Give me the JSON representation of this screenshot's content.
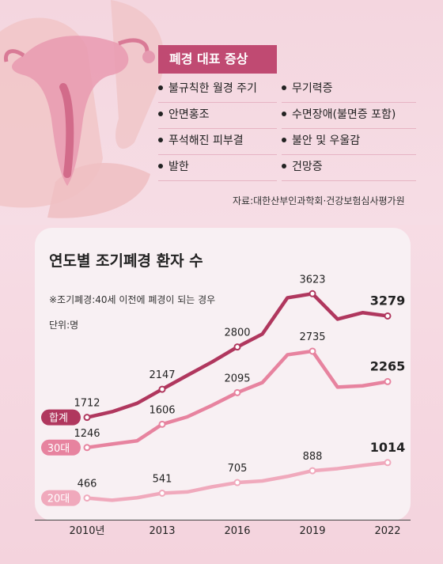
{
  "symptoms": {
    "title": "폐경 대표 증상",
    "items": [
      "불규칙한 월경 주기",
      "무기력증",
      "안면홍조",
      "수면장애(불면증 포함)",
      "푸석해진 피부결",
      "불안 및 우울감",
      "발한",
      "건망증"
    ],
    "source": "자료:대한산부인과학회·건강보험심사평가원"
  },
  "chart_data": {
    "type": "line",
    "title": "연도별 조기폐경 환자 수",
    "note": "※조기폐경:40세 이전에 폐경이 되는 경우",
    "unit": "단위:명",
    "x": [
      2010,
      2011,
      2012,
      2013,
      2014,
      2015,
      2016,
      2017,
      2018,
      2019,
      2020,
      2021,
      2022
    ],
    "tick_labels": [
      "2010년",
      "2013",
      "2016",
      "2019",
      "2022"
    ],
    "tick_years": [
      2010,
      2013,
      2016,
      2019,
      2022
    ],
    "series": [
      {
        "name": "합계",
        "color": "#b0375e",
        "values": [
          1712,
          1800,
          1930,
          2147,
          2360,
          2570,
          2800,
          3000,
          3560,
          3623,
          3230,
          3330,
          3279
        ]
      },
      {
        "name": "30대",
        "color": "#e7839f",
        "values": [
          1246,
          1300,
          1350,
          1606,
          1720,
          1900,
          2095,
          2250,
          2680,
          2735,
          2180,
          2200,
          2265
        ]
      },
      {
        "name": "20대",
        "color": "#f0a9bc",
        "values": [
          466,
          432,
          470,
          541,
          560,
          640,
          705,
          730,
          800,
          888,
          920,
          970,
          1014
        ]
      }
    ],
    "labeled_points": [
      {
        "series": 0,
        "year": 2010,
        "text": "1712"
      },
      {
        "series": 0,
        "year": 2013,
        "text": "2147"
      },
      {
        "series": 0,
        "year": 2016,
        "text": "2800"
      },
      {
        "series": 0,
        "year": 2019,
        "text": "3623"
      },
      {
        "series": 0,
        "year": 2022,
        "text": "3279",
        "bold": true
      },
      {
        "series": 1,
        "year": 2010,
        "text": "1246"
      },
      {
        "series": 1,
        "year": 2013,
        "text": "1606"
      },
      {
        "series": 1,
        "year": 2016,
        "text": "2095"
      },
      {
        "series": 1,
        "year": 2019,
        "text": "2735"
      },
      {
        "series": 1,
        "year": 2022,
        "text": "2265",
        "bold": true
      },
      {
        "series": 2,
        "year": 2010,
        "text": "466"
      },
      {
        "series": 2,
        "year": 2013,
        "text": "541"
      },
      {
        "series": 2,
        "year": 2016,
        "text": "705"
      },
      {
        "series": 2,
        "year": 2019,
        "text": "888"
      },
      {
        "series": 2,
        "year": 2022,
        "text": "1014",
        "bold": true
      }
    ]
  }
}
